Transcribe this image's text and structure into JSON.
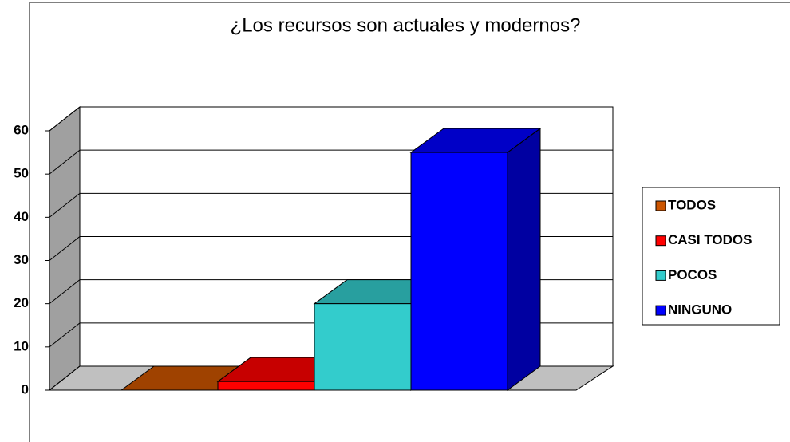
{
  "chart_data": {
    "type": "bar",
    "title": "¿Los recursos son actuales y modernos?",
    "categories": [
      "TODOS",
      "CASI TODOS",
      "POCOS",
      "NINGUNO"
    ],
    "values": [
      0,
      2,
      20,
      55
    ],
    "colors": [
      "#cc5500",
      "#ff0000",
      "#33cccc",
      "#0000ff"
    ],
    "ylim": [
      0,
      60
    ],
    "yticks": [
      0,
      10,
      20,
      30,
      40,
      50,
      60
    ],
    "grid": true,
    "legend": "right"
  }
}
